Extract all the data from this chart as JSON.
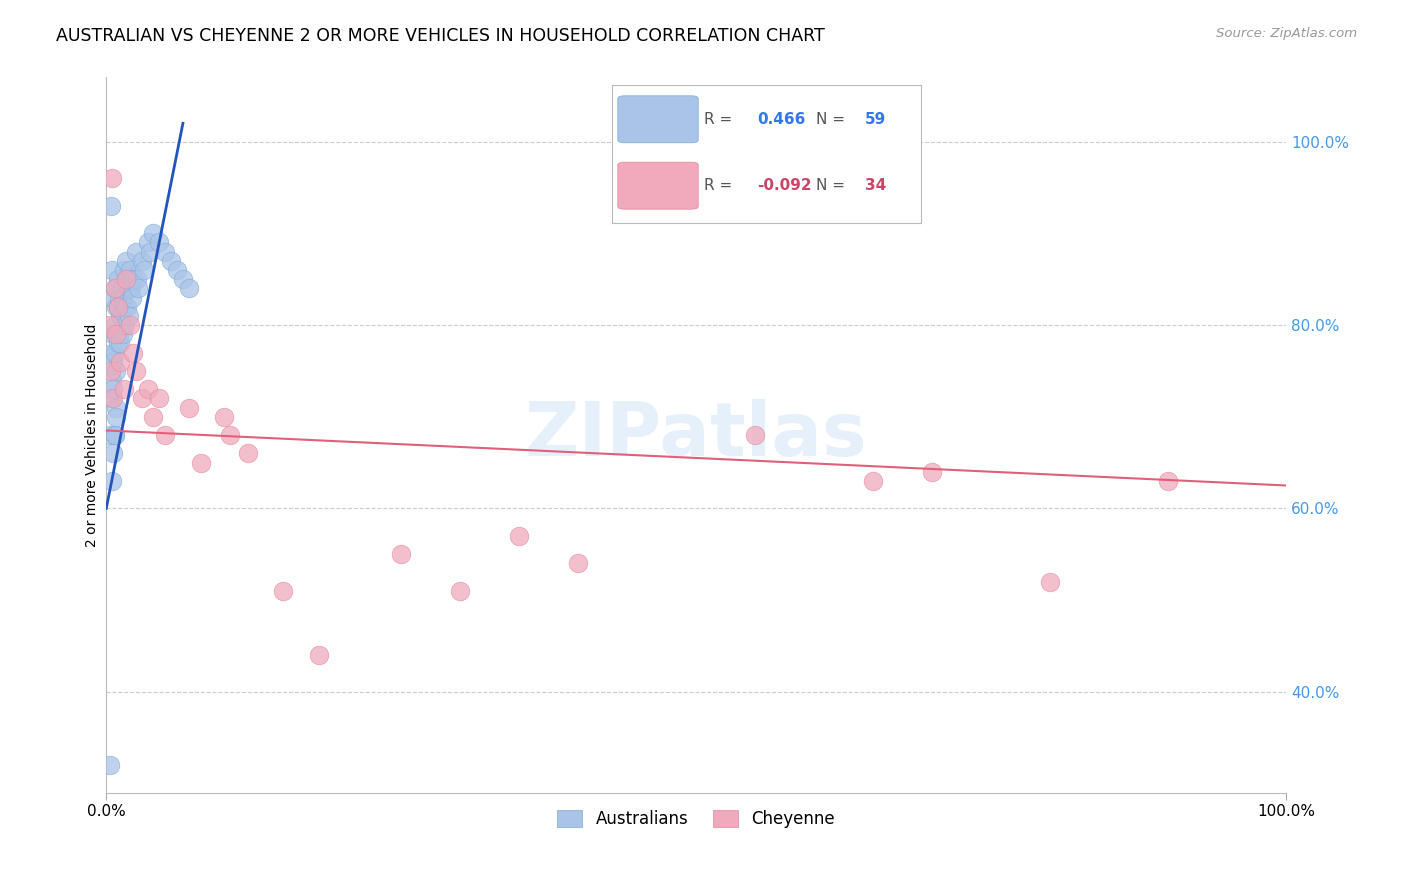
{
  "title": "AUSTRALIAN VS CHEYENNE 2 OR MORE VEHICLES IN HOUSEHOLD CORRELATION CHART",
  "source": "Source: ZipAtlas.com",
  "ylabel": "2 or more Vehicles in Household",
  "legend_label1": "Australians",
  "legend_label2": "Cheyenne",
  "R1": "0.466",
  "N1": "59",
  "R2": "-0.092",
  "N2": "34",
  "watermark": "ZIPatlas",
  "blue_color": "#aac4e8",
  "blue_edge_color": "#7aaad4",
  "blue_line_color": "#2255bb",
  "pink_color": "#f0aabb",
  "pink_edge_color": "#e088a0",
  "pink_line_color": "#e0607a",
  "blue_dots_x": [
    0.3,
    0.4,
    0.4,
    0.5,
    0.5,
    0.5,
    0.5,
    0.6,
    0.6,
    0.6,
    0.7,
    0.7,
    0.7,
    0.7,
    0.8,
    0.8,
    0.8,
    0.8,
    1.0,
    1.0,
    1.0,
    1.1,
    1.1,
    1.2,
    1.2,
    1.3,
    1.4,
    1.4,
    1.5,
    1.5,
    1.6,
    1.7,
    1.8,
    1.8,
    1.9,
    1.9,
    2.0,
    2.1,
    2.2,
    2.3,
    2.5,
    2.6,
    2.7,
    3.0,
    3.2,
    3.5,
    3.7,
    4.0,
    4.5,
    5.0,
    5.5,
    6.0,
    6.5,
    7.0,
    0.3,
    0.5,
    0.6,
    0.7,
    0.8
  ],
  "blue_dots_y": [
    68,
    72,
    93,
    86,
    83,
    77,
    74,
    79,
    76,
    73,
    84,
    80,
    77,
    68,
    82,
    79,
    75,
    71,
    85,
    82,
    78,
    83,
    79,
    81,
    78,
    84,
    83,
    79,
    86,
    82,
    80,
    87,
    85,
    82,
    84,
    81,
    86,
    84,
    83,
    85,
    88,
    85,
    84,
    87,
    86,
    89,
    88,
    90,
    89,
    88,
    87,
    86,
    85,
    84,
    32,
    63,
    66,
    68,
    70
  ],
  "pink_dots_x": [
    0.3,
    0.4,
    0.5,
    0.6,
    0.7,
    0.8,
    1.0,
    1.2,
    1.5,
    1.7,
    2.0,
    2.3,
    2.5,
    3.0,
    3.5,
    4.0,
    4.5,
    5.0,
    7.0,
    8.0,
    10.0,
    10.5,
    12.0,
    15.0,
    18.0,
    25.0,
    30.0,
    35.0,
    40.0,
    55.0,
    65.0,
    70.0,
    80.0,
    90.0
  ],
  "pink_dots_y": [
    80,
    75,
    96,
    72,
    84,
    79,
    82,
    76,
    73,
    85,
    80,
    77,
    75,
    72,
    73,
    70,
    72,
    68,
    71,
    65,
    70,
    68,
    66,
    51,
    44,
    55,
    51,
    57,
    54,
    68,
    63,
    64,
    52,
    63
  ],
  "xlim": [
    0,
    100
  ],
  "ylim": [
    29,
    107
  ],
  "yticks": [
    40,
    60,
    80,
    100
  ],
  "ytick_labels": [
    "40.0%",
    "60.0%",
    "80.0%",
    "100.0%"
  ],
  "xtick_labels": [
    "0.0%",
    "100.0%"
  ],
  "blue_trendline_x": [
    0.0,
    6.5
  ],
  "blue_trendline_y": [
    60.0,
    102.0
  ],
  "pink_trendline_x": [
    0.0,
    100.0
  ],
  "pink_trendline_y": [
    68.5,
    62.5
  ]
}
